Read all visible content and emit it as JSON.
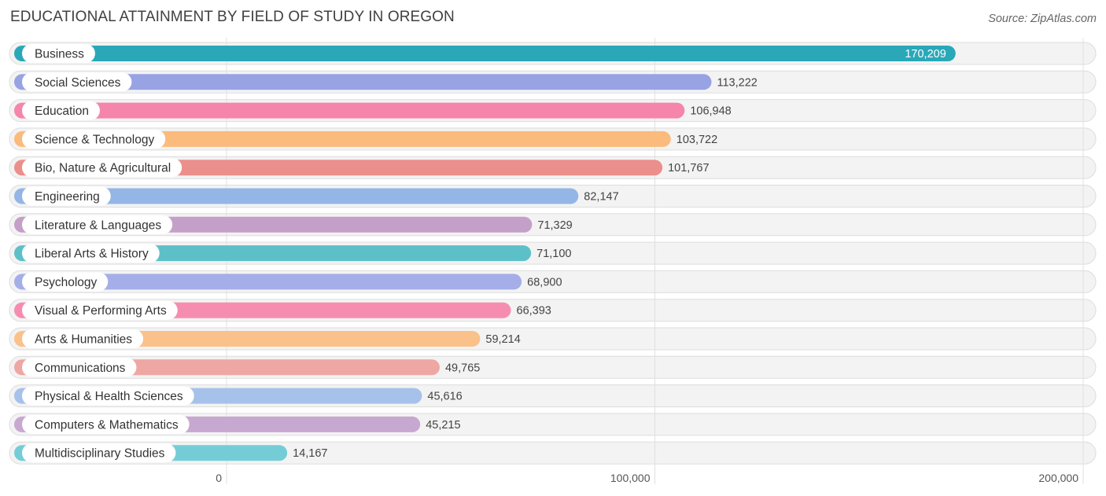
{
  "header": {
    "title": "EDUCATIONAL ATTAINMENT BY FIELD OF STUDY IN OREGON",
    "source": "Source: ZipAtlas.com"
  },
  "chart_data": {
    "type": "bar",
    "orientation": "horizontal",
    "title": "EDUCATIONAL ATTAINMENT BY FIELD OF STUDY IN OREGON",
    "xlabel": "",
    "ylabel": "",
    "xlim": [
      0,
      200000
    ],
    "ticks": [
      0,
      100000,
      200000
    ],
    "tick_labels": [
      "0",
      "100,000",
      "200,000"
    ],
    "categories": [
      "Business",
      "Social Sciences",
      "Education",
      "Science & Technology",
      "Bio, Nature & Agricultural",
      "Engineering",
      "Literature & Languages",
      "Liberal Arts & History",
      "Psychology",
      "Visual & Performing Arts",
      "Arts & Humanities",
      "Communications",
      "Physical & Health Sciences",
      "Computers & Mathematics",
      "Multidisciplinary Studies"
    ],
    "values": [
      170209,
      113222,
      106948,
      103722,
      101767,
      82147,
      71329,
      71100,
      68900,
      66393,
      59214,
      49765,
      45616,
      45215,
      14167
    ],
    "value_labels": [
      "170,209",
      "113,222",
      "106,948",
      "103,722",
      "101,767",
      "82,147",
      "71,329",
      "71,100",
      "68,900",
      "66,393",
      "59,214",
      "49,765",
      "45,616",
      "45,215",
      "14,167"
    ],
    "colors": [
      "#2aa8b8",
      "#98a3e3",
      "#f585ab",
      "#fbbb7c",
      "#eb8f8c",
      "#94b6e6",
      "#c4a0c8",
      "#5dc0c8",
      "#a5aee8",
      "#f68db0",
      "#fbc18a",
      "#eea7a3",
      "#a6c2ea",
      "#c7a8d0",
      "#74cdd6"
    ],
    "grid": true
  }
}
